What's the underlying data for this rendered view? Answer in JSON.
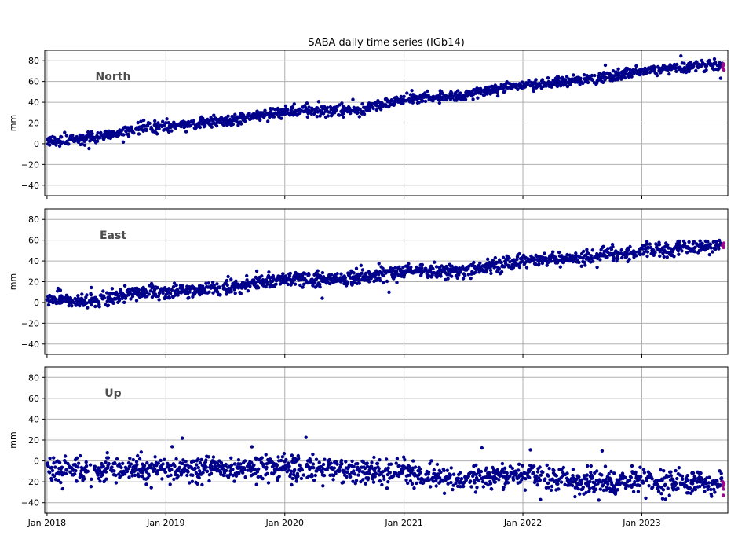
{
  "colors": {
    "points": "#00008b",
    "latest_points": "#9b0a8c",
    "grid": "#b0b0b0",
    "axes": "#000000",
    "panel_label": "#4d4d4d"
  },
  "chart_data": {
    "type": "scatter",
    "title": "SABA daily time series (IGb14)",
    "ylabel": "mm",
    "ylim": [
      -50,
      90
    ],
    "yticks": [
      -40,
      -20,
      0,
      20,
      40,
      60,
      80
    ],
    "xlim": [
      "2017-12-25",
      "2023-09-22"
    ],
    "xticks": [
      "2018-01-01",
      "2019-01-01",
      "2020-01-01",
      "2021-01-01",
      "2022-01-01",
      "2023-01-01"
    ],
    "xtick_labels": [
      "Jan 2018",
      "Jan 2019",
      "Jan 2020",
      "Jan 2021",
      "Jan 2022",
      "Jan 2023"
    ],
    "grid": true,
    "sampling": "daily, 2018-01-01 to 2023-09-10",
    "series": [
      {
        "name": "North",
        "trend_knots": [
          [
            "2018-01-01",
            2
          ],
          [
            "2018-06-01",
            6
          ],
          [
            "2018-10-01",
            15
          ],
          [
            "2019-06-01",
            21
          ],
          [
            "2019-09-01",
            25
          ],
          [
            "2020-01-01",
            31
          ],
          [
            "2020-09-01",
            33
          ],
          [
            "2020-11-01",
            40
          ],
          [
            "2021-03-01",
            45
          ],
          [
            "2021-07-01",
            46
          ],
          [
            "2021-12-01",
            56
          ],
          [
            "2022-06-01",
            60
          ],
          [
            "2022-10-01",
            65
          ],
          [
            "2023-01-01",
            70
          ],
          [
            "2023-09-10",
            77
          ]
        ],
        "noise_std_mm": 2.5,
        "latest_values": [
          73,
          75,
          77,
          76,
          71
        ]
      },
      {
        "name": "East",
        "trend_knots": [
          [
            "2018-01-01",
            3
          ],
          [
            "2018-06-01",
            1
          ],
          [
            "2018-09-01",
            8
          ],
          [
            "2019-06-01",
            13
          ],
          [
            "2020-01-01",
            23
          ],
          [
            "2020-07-01",
            22
          ],
          [
            "2021-01-01",
            30
          ],
          [
            "2021-07-01",
            31
          ],
          [
            "2022-01-01",
            40
          ],
          [
            "2022-07-01",
            43
          ],
          [
            "2023-01-01",
            50
          ],
          [
            "2023-09-10",
            55
          ]
        ],
        "noise_std_mm": 3.5,
        "latest_values": [
          55,
          56,
          54,
          53,
          57
        ]
      },
      {
        "name": "Up",
        "trend_knots": [
          [
            "2018-01-01",
            -9
          ],
          [
            "2019-01-01",
            -9
          ],
          [
            "2020-01-01",
            -6
          ],
          [
            "2020-07-01",
            -9
          ],
          [
            "2021-01-01",
            -11
          ],
          [
            "2021-07-01",
            -18
          ],
          [
            "2022-01-01",
            -12
          ],
          [
            "2022-07-01",
            -20
          ],
          [
            "2023-01-01",
            -19
          ],
          [
            "2023-09-10",
            -24
          ]
        ],
        "noise_std_mm": 6,
        "latest_values": [
          -20,
          -24,
          -33,
          -27,
          -22
        ]
      }
    ]
  }
}
